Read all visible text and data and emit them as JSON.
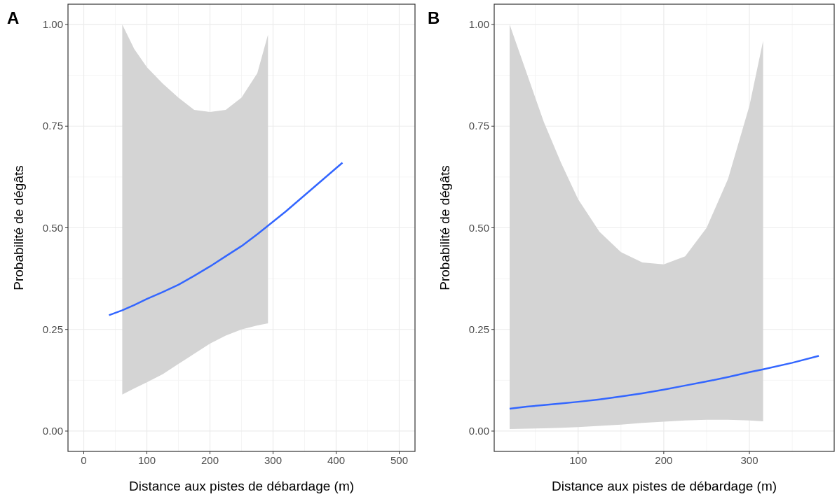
{
  "chart_data": [
    {
      "type": "line",
      "title": "A",
      "xlabel": "Distance aux pistes de débardage (m)",
      "ylabel": "Probabilité de dégâts",
      "xlim": [
        -25,
        525
      ],
      "xticks": [
        0,
        100,
        200,
        300,
        400,
        500
      ],
      "ylim": [
        -0.05,
        1.05
      ],
      "yticks": [
        {
          "value": 0,
          "label": "0.00"
        },
        {
          "value": 0.25,
          "label": "0.25"
        },
        {
          "value": 0.5,
          "label": "0.50"
        },
        {
          "value": 0.75,
          "label": "0.75"
        },
        {
          "value": 1,
          "label": "1.00"
        }
      ],
      "grid": true,
      "series": [
        {
          "color": "#3366ff",
          "x": [
            40,
            61,
            80,
            100,
            125,
            150,
            175,
            200,
            225,
            250,
            275,
            292,
            320,
            350,
            380,
            410
          ],
          "values": [
            0.285,
            0.297,
            0.31,
            0.325,
            0.342,
            0.36,
            0.382,
            0.405,
            0.43,
            0.455,
            0.484,
            0.505,
            0.54,
            0.58,
            0.62,
            0.66
          ],
          "lower": [
            null,
            0.09,
            0.105,
            0.12,
            0.14,
            0.165,
            0.19,
            0.215,
            0.235,
            0.25,
            0.26,
            0.265,
            null,
            null,
            null,
            null
          ],
          "upper": [
            null,
            1.0,
            0.94,
            0.895,
            0.855,
            0.82,
            0.79,
            0.785,
            0.79,
            0.82,
            0.88,
            0.975,
            null,
            null,
            null,
            null
          ]
        }
      ]
    },
    {
      "type": "line",
      "title": "B",
      "xlabel": "Distance aux pistes de débardage (m)",
      "ylabel": "Probabilité de dégâts",
      "xlim": [
        2,
        399
      ],
      "xticks": [
        100,
        200,
        300
      ],
      "ylim": [
        -0.05,
        1.05
      ],
      "yticks": [
        {
          "value": 0,
          "label": "0.00"
        },
        {
          "value": 0.25,
          "label": "0.25"
        },
        {
          "value": 0.5,
          "label": "0.50"
        },
        {
          "value": 0.75,
          "label": "0.75"
        },
        {
          "value": 1,
          "label": "1.00"
        }
      ],
      "grid": true,
      "series": [
        {
          "color": "#3366ff",
          "x": [
            20,
            40,
            60,
            80,
            100,
            125,
            150,
            175,
            200,
            225,
            250,
            275,
            300,
            316,
            350,
            381
          ],
          "values": [
            0.055,
            0.06,
            0.064,
            0.068,
            0.072,
            0.078,
            0.085,
            0.093,
            0.102,
            0.112,
            0.122,
            0.133,
            0.145,
            0.152,
            0.168,
            0.185
          ],
          "lower": [
            0.005,
            0.006,
            0.007,
            0.008,
            0.01,
            0.013,
            0.016,
            0.02,
            0.023,
            0.026,
            0.028,
            0.028,
            0.026,
            0.024,
            null,
            null
          ],
          "upper": [
            1.0,
            0.88,
            0.76,
            0.66,
            0.57,
            0.49,
            0.44,
            0.415,
            0.41,
            0.43,
            0.5,
            0.62,
            0.8,
            0.96,
            null,
            null
          ]
        }
      ]
    }
  ]
}
